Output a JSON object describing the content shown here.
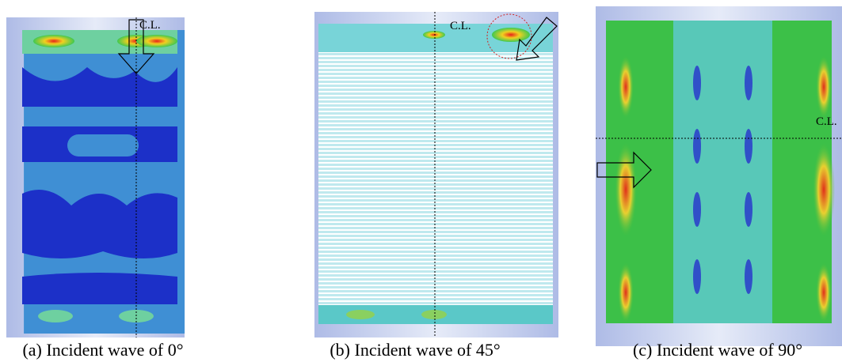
{
  "panels": [
    {
      "cl_label": "C.L.",
      "caption": "(a) Incident wave of 0°"
    },
    {
      "cl_label": "C.L.",
      "caption": "(b) Incident wave of 45°"
    },
    {
      "cl_label": "C.L.",
      "caption": "(c) Incident wave of 90°"
    }
  ]
}
